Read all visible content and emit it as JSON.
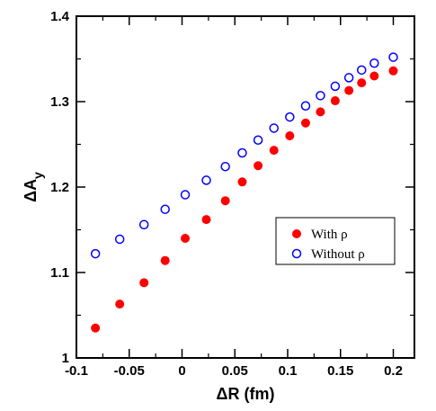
{
  "chart_data": {
    "type": "scatter",
    "xlabel": "ΔR (fm)",
    "ylabel_main": "ΔA",
    "ylabel_sub": "y",
    "xlim": [
      -0.1,
      0.22
    ],
    "ylim": [
      1.0,
      1.4
    ],
    "x_ticks": [
      -0.1,
      -0.05,
      0,
      0.05,
      0.1,
      0.15,
      0.2
    ],
    "x_tick_labels": [
      "-0.1",
      "-0.05",
      "0",
      "0.05",
      "0.1",
      "0.15",
      "0.2"
    ],
    "y_ticks": [
      1.0,
      1.1,
      1.2,
      1.3,
      1.4
    ],
    "y_tick_labels": [
      "1",
      "1.1",
      "1.2",
      "1.3",
      "1.4"
    ],
    "grid": false,
    "legend_position": "right-middle",
    "series": [
      {
        "name": "With ρ",
        "marker": "filled-circle",
        "color": "#ff0000",
        "x": [
          -0.082,
          -0.059,
          -0.036,
          -0.016,
          0.003,
          0.023,
          0.041,
          0.057,
          0.072,
          0.087,
          0.102,
          0.117,
          0.131,
          0.145,
          0.158,
          0.17,
          0.182,
          0.2
        ],
        "y": [
          1.035,
          1.063,
          1.088,
          1.114,
          1.14,
          1.162,
          1.184,
          1.206,
          1.225,
          1.243,
          1.26,
          1.275,
          1.288,
          1.301,
          1.313,
          1.322,
          1.33,
          1.336
        ]
      },
      {
        "name": "Without ρ",
        "marker": "open-circle",
        "color": "#0000ff",
        "x": [
          -0.082,
          -0.059,
          -0.036,
          -0.016,
          0.003,
          0.023,
          0.041,
          0.057,
          0.072,
          0.087,
          0.102,
          0.117,
          0.131,
          0.145,
          0.158,
          0.17,
          0.182,
          0.2
        ],
        "y": [
          1.122,
          1.139,
          1.156,
          1.174,
          1.191,
          1.208,
          1.224,
          1.24,
          1.255,
          1.269,
          1.282,
          1.295,
          1.307,
          1.318,
          1.328,
          1.337,
          1.345,
          1.352
        ]
      }
    ]
  }
}
